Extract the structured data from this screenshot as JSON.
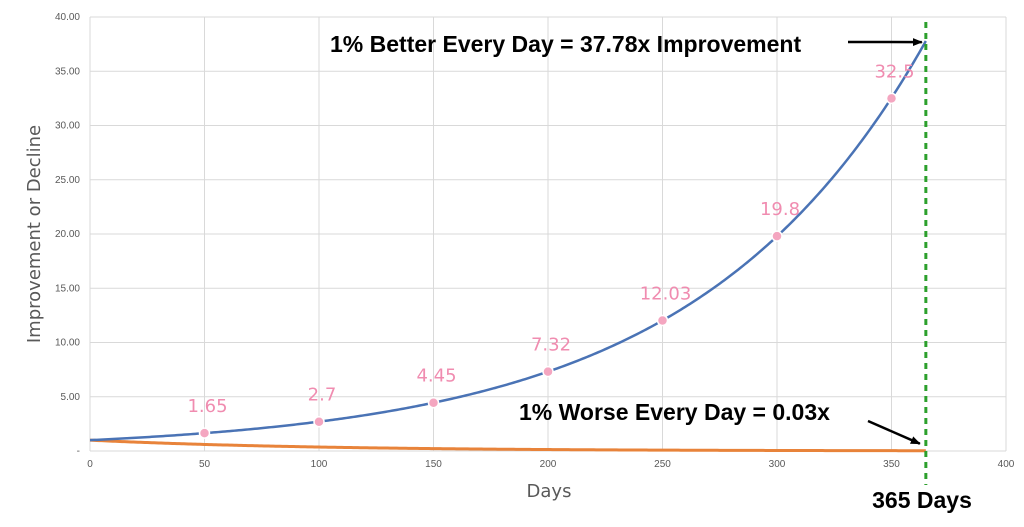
{
  "chart_data": {
    "type": "line",
    "xlabel": "Days",
    "ylabel": "Improvement or Decline",
    "xlim": [
      0,
      400
    ],
    "ylim": [
      0,
      40
    ],
    "x_ticks": [
      "0",
      "50",
      "100",
      "150",
      "200",
      "250",
      "300",
      "350",
      "400"
    ],
    "y_ticks": [
      "-",
      "5.00",
      "10.00",
      "15.00",
      "20.00",
      "25.00",
      "30.00",
      "35.00",
      "40.00"
    ],
    "grid": true,
    "series": [
      {
        "color": "#4a73b5",
        "formula": "1.01^day",
        "x_range": [
          0,
          365
        ],
        "markers": [
          {
            "x": 50,
            "y": 1.65,
            "label": "1.65"
          },
          {
            "x": 100,
            "y": 2.7,
            "label": "2.7"
          },
          {
            "x": 150,
            "y": 4.45,
            "label": "4.45"
          },
          {
            "x": 200,
            "y": 7.32,
            "label": "7.32"
          },
          {
            "x": 250,
            "y": 12.03,
            "label": "12.03"
          },
          {
            "x": 300,
            "y": 19.8,
            "label": "19.8"
          },
          {
            "x": 350,
            "y": 32.5,
            "label": "32.5"
          }
        ]
      },
      {
        "color": "#e8833a",
        "formula": "0.99^day",
        "x_range": [
          0,
          365
        ]
      }
    ],
    "marker_color": "#f4a6c0",
    "vertical_line": {
      "x": 365,
      "label": "365 Days",
      "color": "#2ca02c",
      "style": "dotted"
    },
    "annotations": [
      {
        "text": "1% Better Every Day = 37.78x Improvement",
        "target": {
          "x": 365,
          "y": 37.78
        }
      },
      {
        "text": "1% Worse Every Day = 0.03x",
        "target": {
          "x": 365,
          "y": 0.03
        }
      }
    ]
  }
}
